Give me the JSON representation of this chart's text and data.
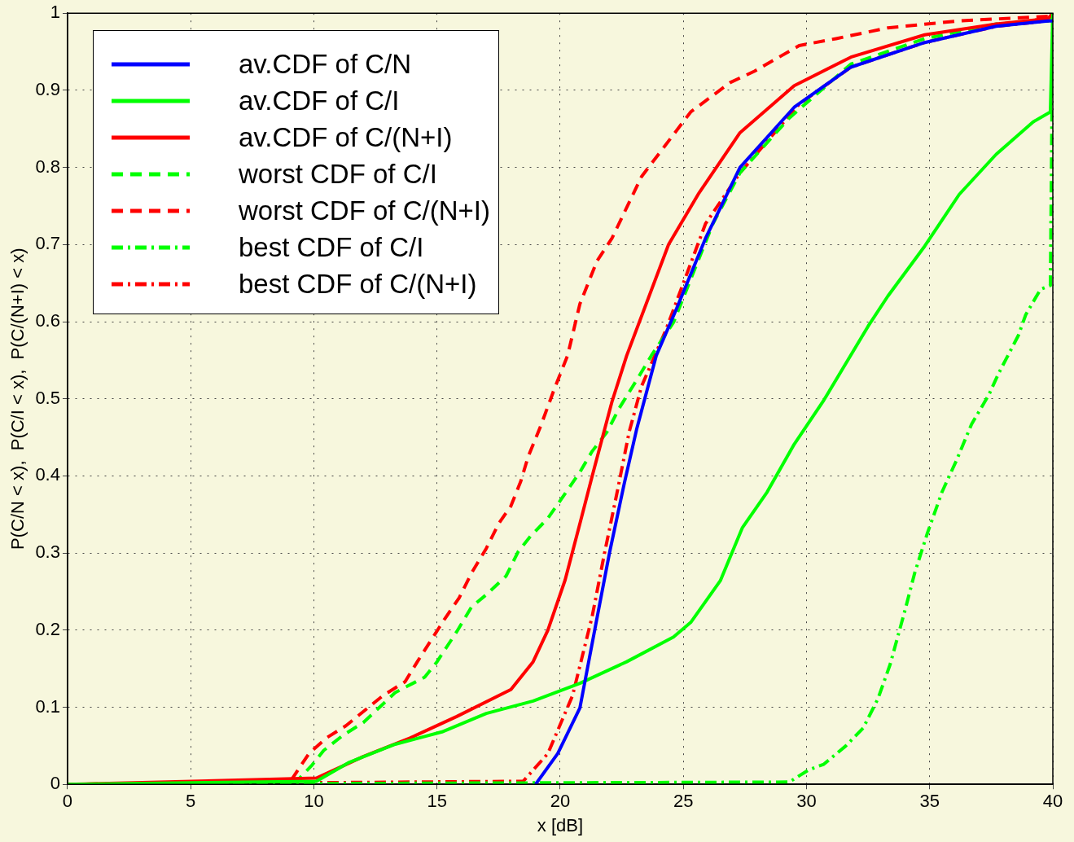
{
  "chart_data": {
    "type": "line",
    "xlabel": "x [dB]",
    "ylabel": "P(C/N < x),  P(C/I < x),  P(C/(N+I) < x)",
    "xlim": [
      0,
      40
    ],
    "ylim": [
      0,
      1
    ],
    "xticks": [
      0,
      5,
      10,
      15,
      20,
      25,
      30,
      35,
      40
    ],
    "yticks": [
      0,
      0.1,
      0.2,
      0.3,
      0.4,
      0.5,
      0.6,
      0.7,
      0.8,
      0.9,
      1
    ],
    "grid": true,
    "legend": "top left",
    "marker": "none",
    "series": [
      {
        "name": "av.CDF of C/N",
        "color": "#0000ff",
        "line_style": "solid",
        "x": [
          19.0,
          19.9,
          20.8,
          21.4,
          22.0,
          22.6,
          23.1,
          23.9,
          24.7,
          25.9,
          27.3,
          29.5,
          31.8,
          34.8,
          37.7,
          39.8,
          40
        ],
        "values": [
          0,
          0.04,
          0.099,
          0.2,
          0.3,
          0.39,
          0.46,
          0.556,
          0.615,
          0.708,
          0.8,
          0.878,
          0.93,
          0.962,
          0.983,
          0.99,
          0.99
        ]
      },
      {
        "name": "av.CDF of C/I",
        "color": "#00ff00",
        "line_style": "solid",
        "x": [
          0,
          10.1,
          11.4,
          13.3,
          15.2,
          17.0,
          18.9,
          20.8,
          22.7,
          24.6,
          25.3,
          26.5,
          27.4,
          28.4,
          29.5,
          30.7,
          32.5,
          33.3,
          34.8,
          36.2,
          37.7,
          39.2,
          39.9,
          40
        ],
        "values": [
          0,
          0.004,
          0.028,
          0.052,
          0.068,
          0.092,
          0.108,
          0.131,
          0.159,
          0.191,
          0.21,
          0.264,
          0.333,
          0.379,
          0.441,
          0.498,
          0.594,
          0.633,
          0.698,
          0.765,
          0.817,
          0.859,
          0.872,
          1
        ]
      },
      {
        "name": "av.CDF of C/(N+I)",
        "color": "#ff0000",
        "line_style": "solid",
        "x": [
          0,
          10.1,
          12.0,
          13.9,
          15.8,
          18.0,
          18.9,
          19.5,
          20.2,
          20.8,
          21.3,
          22.1,
          22.7,
          24.4,
          25.6,
          27.3,
          29.5,
          31.8,
          34.8,
          37.7,
          39.8,
          40
        ],
        "values": [
          0,
          0.008,
          0.036,
          0.06,
          0.088,
          0.123,
          0.159,
          0.2,
          0.265,
          0.338,
          0.4,
          0.496,
          0.556,
          0.7,
          0.765,
          0.845,
          0.906,
          0.943,
          0.972,
          0.986,
          0.993,
          1
        ]
      },
      {
        "name": "worst CDF of C/I",
        "color": "#00ff00",
        "line_style": "dashed",
        "x": [
          0,
          9.3,
          9.9,
          10.4,
          11.2,
          12.0,
          13.3,
          14.5,
          15.0,
          15.8,
          16.4,
          17.0,
          17.8,
          18.3,
          18.8,
          19.5,
          20.2,
          20.8,
          21.3,
          21.9,
          22.4,
          23.1,
          23.7,
          24.6,
          26.2,
          27.3,
          29.3,
          31.8,
          34.8,
          37.7,
          39.8,
          40
        ],
        "values": [
          0,
          0.004,
          0.024,
          0.044,
          0.064,
          0.08,
          0.119,
          0.139,
          0.159,
          0.198,
          0.23,
          0.246,
          0.27,
          0.302,
          0.322,
          0.345,
          0.377,
          0.405,
          0.432,
          0.457,
          0.488,
          0.524,
          0.556,
          0.599,
          0.727,
          0.793,
          0.864,
          0.934,
          0.967,
          0.986,
          0.99,
          1
        ]
      },
      {
        "name": "worst CDF of C/(N+I)",
        "color": "#ff0000",
        "line_style": "dashed",
        "x": [
          0,
          9.05,
          9.8,
          10.5,
          11.3,
          12.8,
          13.7,
          14.2,
          15.3,
          15.9,
          16.4,
          17.0,
          17.5,
          18.0,
          18.4,
          18.7,
          19.2,
          19.8,
          20.3,
          20.8,
          21.5,
          22.1,
          23.3,
          25.3,
          26.9,
          27.9,
          29.7,
          31.2,
          33.3,
          36.2,
          39.8,
          40
        ],
        "values": [
          0,
          0.004,
          0.04,
          0.06,
          0.076,
          0.115,
          0.133,
          0.159,
          0.214,
          0.242,
          0.274,
          0.306,
          0.338,
          0.361,
          0.393,
          0.425,
          0.464,
          0.516,
          0.556,
          0.623,
          0.679,
          0.708,
          0.788,
          0.872,
          0.91,
          0.925,
          0.958,
          0.967,
          0.981,
          0.99,
          0.996,
          1
        ]
      },
      {
        "name": "best CDF of C/I",
        "color": "#00ff00",
        "line_style": "dashdot",
        "x": [
          0,
          29.3,
          30.1,
          30.7,
          31.6,
          32.3,
          32.9,
          33.4,
          34.0,
          34.4,
          34.9,
          35.5,
          36.1,
          36.7,
          37.4,
          37.8,
          38.6,
          38.9,
          39.5,
          39.9,
          40
        ],
        "values": [
          0,
          0.003,
          0.019,
          0.026,
          0.05,
          0.073,
          0.111,
          0.156,
          0.226,
          0.275,
          0.325,
          0.379,
          0.421,
          0.467,
          0.505,
          0.533,
          0.582,
          0.609,
          0.642,
          0.647,
          1
        ]
      },
      {
        "name": "best CDF of C/(N+I)",
        "color": "#ff0000",
        "line_style": "dashdot",
        "x": [
          0,
          18.5,
          19.5,
          20.5,
          21.3,
          21.8,
          22.3,
          22.8,
          23.3,
          24.3,
          25.9,
          27.3,
          29.7,
          31.8,
          34.8,
          37.7,
          39.8,
          40
        ],
        "values": [
          0,
          0.004,
          0.04,
          0.115,
          0.218,
          0.3,
          0.377,
          0.457,
          0.516,
          0.59,
          0.727,
          0.793,
          0.882,
          0.93,
          0.962,
          0.983,
          0.99,
          1
        ]
      }
    ]
  }
}
